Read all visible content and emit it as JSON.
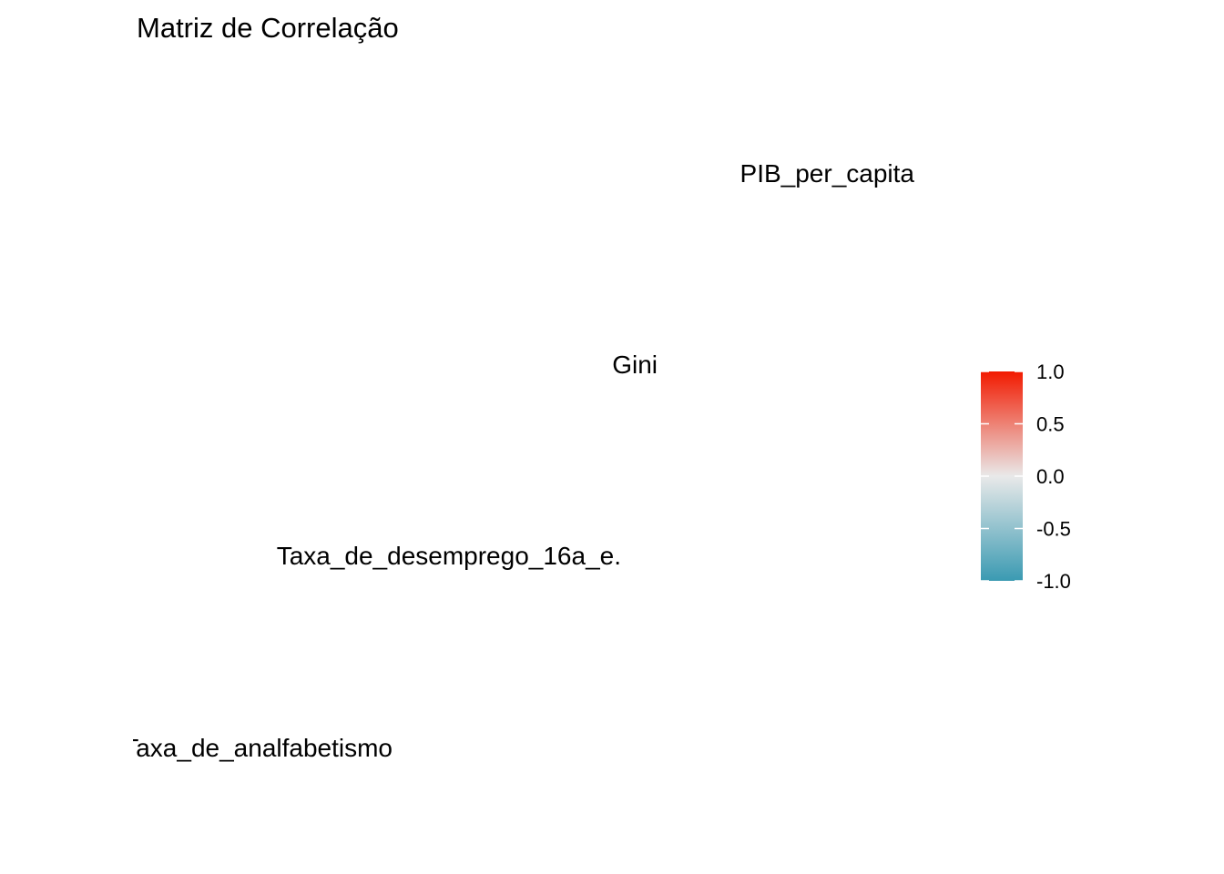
{
  "chart_data": {
    "type": "heatmap",
    "title": "Matriz de Correlação",
    "variables": [
      "Taxa_de_analfabetismo",
      "Taxa_de_desemprego_16a_e.",
      "Gini",
      "PIB_per_capita"
    ],
    "xlabel": "",
    "ylabel": "",
    "cells": [],
    "legend": {
      "position": "right",
      "limits": [
        -1,
        1
      ],
      "breaks": [
        1.0,
        0.5,
        0.0,
        -0.5,
        -1.0
      ],
      "labels": [
        "1.0",
        "0.5",
        "0.0",
        "-0.5",
        "-1.0"
      ],
      "colors": {
        "low": "#3A9AB2",
        "mid": "#E9E9E9",
        "high": "#F21A00"
      }
    },
    "grid": false
  }
}
